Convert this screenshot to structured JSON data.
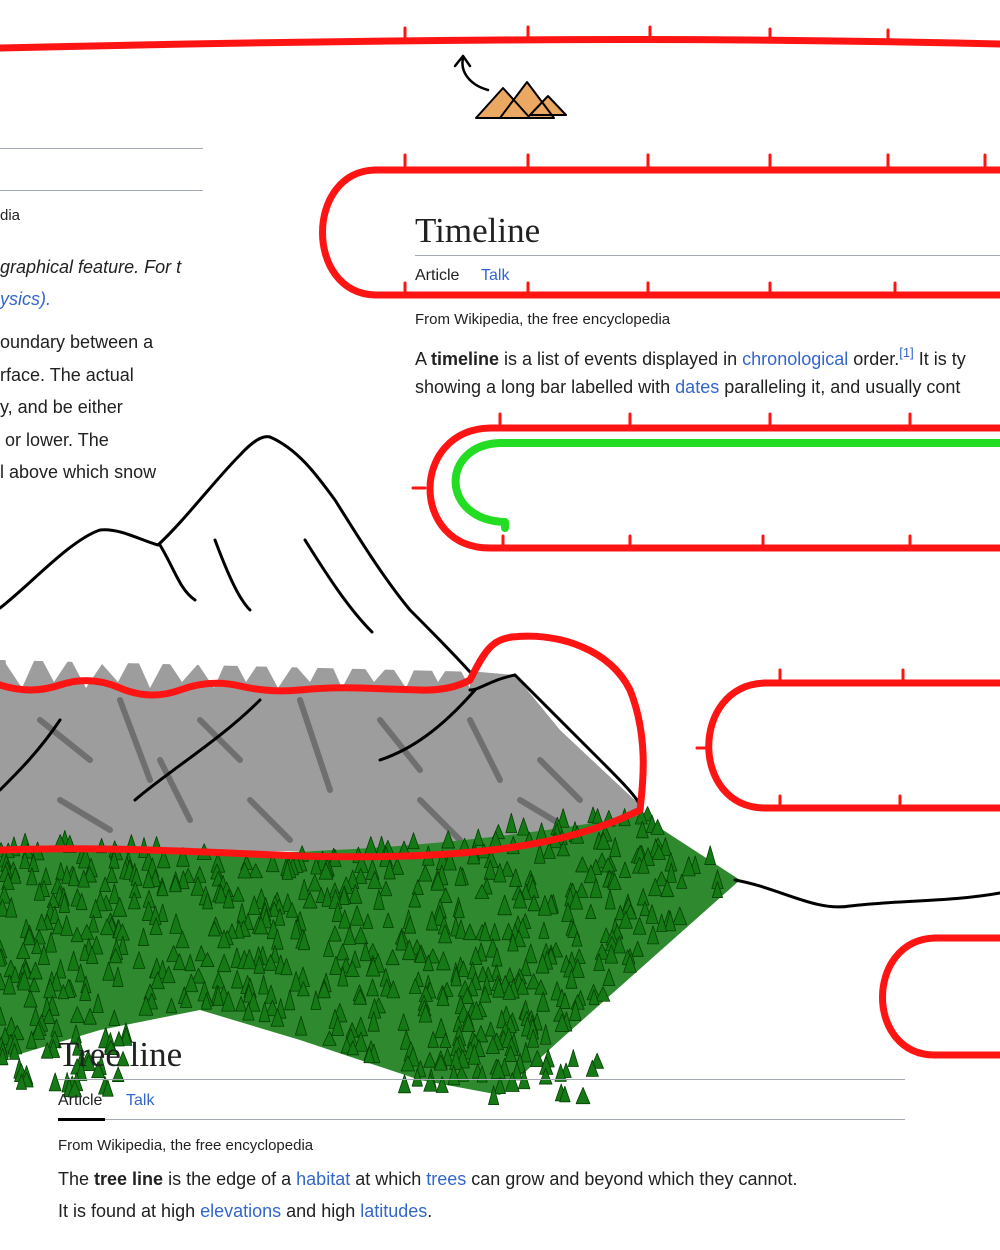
{
  "snow_line_fragment": {
    "tagline": "dia",
    "hatnote": [
      [
        {
          "text": "graphical feature. For t",
          "style": "italic"
        }
      ],
      [
        {
          "text": "ysics).",
          "style": "italic-link"
        }
      ]
    ],
    "paragraph": [
      [
        {
          "text": "oundary between a",
          "style": "plain"
        }
      ],
      [
        {
          "text": "rface. The actual",
          "style": "plain"
        }
      ],
      [
        {
          "text": "y, and be either",
          "style": "plain"
        }
      ],
      [
        {
          "text": "or lower. The",
          "style": "plain"
        }
      ],
      [
        {
          "text": "l above which snow",
          "style": "plain"
        }
      ]
    ]
  },
  "timeline_article": {
    "title": "Timeline",
    "tabs": [
      "Article",
      "Talk"
    ],
    "tagline": "From Wikipedia, the free encyclopedia",
    "paragraph": [
      [
        {
          "text": "A ",
          "style": "plain"
        },
        {
          "text": "timeline",
          "style": "bold"
        },
        {
          "text": " is a list of events displayed in ",
          "style": "plain"
        },
        {
          "text": "chronological",
          "style": "link"
        },
        {
          "text": " order.",
          "style": "plain"
        },
        {
          "text": "[1]",
          "style": "sup"
        },
        {
          "text": " It is ty",
          "style": "plain"
        }
      ],
      [
        {
          "text": "showing a long bar labelled with ",
          "style": "plain"
        },
        {
          "text": "dates",
          "style": "link"
        },
        {
          "text": " paralleling it, and usually cont",
          "style": "plain"
        }
      ]
    ]
  },
  "tree_line_article": {
    "title": "Tree line",
    "tabs": [
      "Article",
      "Talk"
    ],
    "tagline": "From Wikipedia, the free encyclopedia",
    "paragraph": [
      [
        {
          "text": "The ",
          "style": "plain"
        },
        {
          "text": "tree line",
          "style": "bold"
        },
        {
          "text": " is the edge of a ",
          "style": "plain"
        },
        {
          "text": "habitat",
          "style": "link"
        },
        {
          "text": " at which ",
          "style": "plain"
        },
        {
          "text": "trees",
          "style": "link"
        },
        {
          "text": " can grow and beyond which they cannot.",
          "style": "plain"
        }
      ],
      [
        {
          "text": "It is found at high ",
          "style": "plain"
        },
        {
          "text": "elevations",
          "style": "link"
        },
        {
          "text": " and high ",
          "style": "plain"
        },
        {
          "text": "latitudes",
          "style": "link"
        },
        {
          "text": ".",
          "style": "plain"
        }
      ]
    ]
  }
}
